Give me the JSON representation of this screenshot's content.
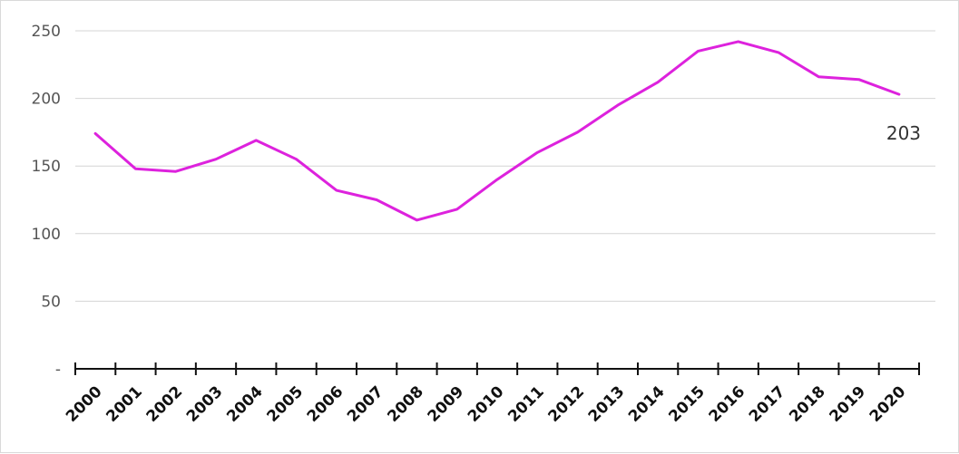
{
  "chart_data": {
    "type": "line",
    "title": "",
    "xlabel": "",
    "ylabel": "",
    "ylim": [
      0,
      250
    ],
    "yticks": [
      0,
      50,
      100,
      150,
      200,
      250
    ],
    "ytick_labels": [
      "-",
      "50",
      "100",
      "150",
      "200",
      "250"
    ],
    "grid": true,
    "legend": "none",
    "x": [
      "2000",
      "2001",
      "2002",
      "2003",
      "2004",
      "2005",
      "2006",
      "2007",
      "2008",
      "2009",
      "2010",
      "2011",
      "2012",
      "2013",
      "2014",
      "2015",
      "2016",
      "2017",
      "2018",
      "2019",
      "2020"
    ],
    "series": [
      {
        "values": [
          174,
          148,
          146,
          155,
          169,
          155,
          132,
          125,
          110,
          118,
          140,
          160,
          175,
          195,
          212,
          235,
          242,
          234,
          216,
          214,
          203
        ],
        "color": "#dd22dd"
      }
    ],
    "annotations": [
      {
        "series": 0,
        "index": 20,
        "text": "203"
      }
    ]
  }
}
